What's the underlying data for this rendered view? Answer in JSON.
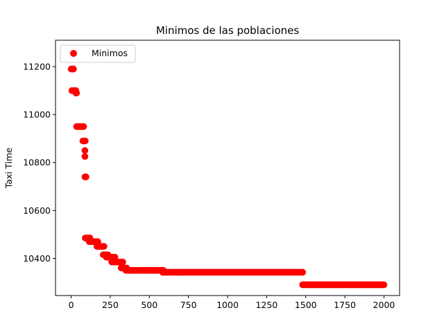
{
  "chart_data": {
    "type": "scatter",
    "title": "Minimos de las poblaciones",
    "xlabel": "",
    "ylabel": "Taxi Time",
    "xlim": [
      -100,
      2100
    ],
    "ylim": [
      10245,
      10310
    ],
    "ylim_full": [
      10245,
      11310
    ],
    "x_ticks": [
      0,
      250,
      500,
      750,
      1000,
      1250,
      1500,
      1750,
      2000
    ],
    "y_ticks": [
      10400,
      10600,
      10800,
      11000,
      11200
    ],
    "grid": false,
    "legend_position": "top-left",
    "series": [
      {
        "name": "Minimos",
        "color": "#ff0000",
        "segments": [
          {
            "x_start": 0,
            "x_end": 15,
            "y": 11190
          },
          {
            "x_start": 5,
            "x_end": 30,
            "y": 11100
          },
          {
            "x_start": 30,
            "x_end": 35,
            "y": 11090
          },
          {
            "x_start": 35,
            "x_end": 80,
            "y": 10950
          },
          {
            "x_start": 75,
            "x_end": 90,
            "y": 10890
          },
          {
            "x_start": 88,
            "x_end": 88,
            "y": 10850
          },
          {
            "x_start": 88,
            "x_end": 88,
            "y": 10825
          },
          {
            "x_start": 88,
            "x_end": 95,
            "y": 10740
          },
          {
            "x_start": 90,
            "x_end": 120,
            "y": 10485
          },
          {
            "x_start": 115,
            "x_end": 170,
            "y": 10470
          },
          {
            "x_start": 165,
            "x_end": 210,
            "y": 10450
          },
          {
            "x_start": 205,
            "x_end": 235,
            "y": 10415
          },
          {
            "x_start": 225,
            "x_end": 280,
            "y": 10405
          },
          {
            "x_start": 260,
            "x_end": 330,
            "y": 10385
          },
          {
            "x_start": 320,
            "x_end": 355,
            "y": 10360
          },
          {
            "x_start": 350,
            "x_end": 590,
            "y": 10350
          },
          {
            "x_start": 585,
            "x_end": 1480,
            "y": 10342
          },
          {
            "x_start": 1480,
            "x_end": 2000,
            "y": 10290
          }
        ]
      }
    ]
  }
}
